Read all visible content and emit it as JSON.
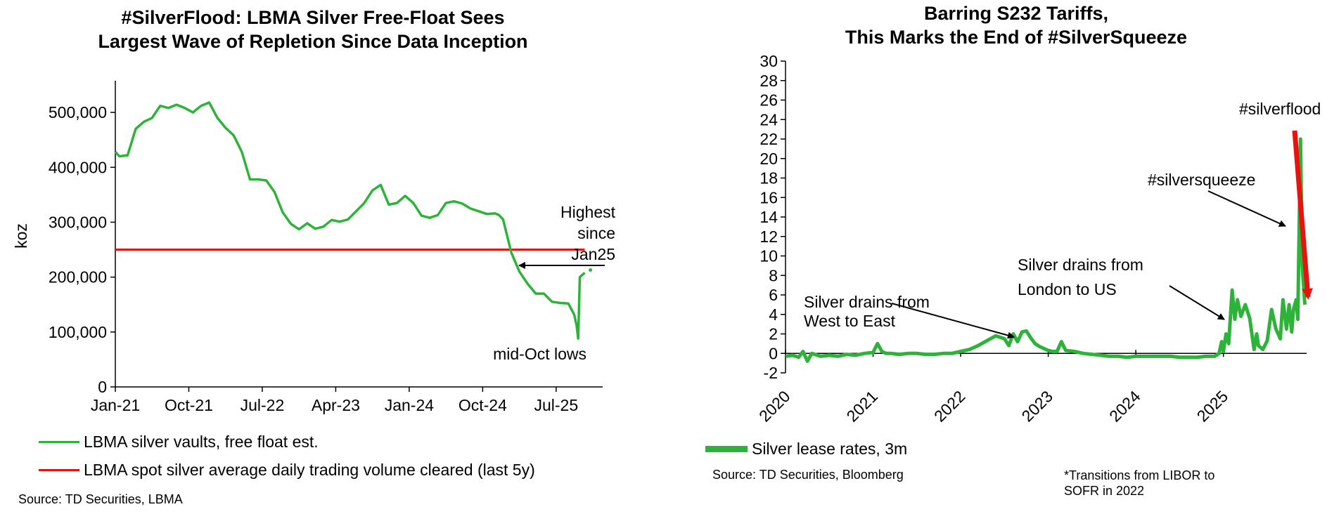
{
  "colors": {
    "green": "#2DB33A",
    "red": "#E8130E",
    "black": "#000000"
  },
  "left": {
    "source": "Source: TD Securities, LBMA",
    "legend": [
      {
        "label": "LBMA silver vaults, free float est.",
        "color": "#2DB33A"
      },
      {
        "label": "LBMA spot silver average daily trading volume cleared (last 5y)",
        "color": "#E8130E"
      }
    ],
    "annotations": {
      "highest_lines": [
        "Highest",
        "since",
        "Jan25"
      ],
      "lows": "mid-Oct lows"
    }
  },
  "right": {
    "source": "Source: TD Securities, Bloomberg",
    "note_lines": [
      "*Transitions from LIBOR to",
      "SOFR in 2022"
    ],
    "legend": [
      {
        "label": "Silver lease rates, 3m",
        "color": "#2DB33A"
      }
    ],
    "annotations": {
      "west_east": [
        "Silver drains from",
        "West to East"
      ],
      "london_us": [
        "Silver drains from",
        "London to US"
      ],
      "squeeze": "#silversqueeze",
      "flood": "#silverflood"
    }
  },
  "chart_data": [
    {
      "type": "line",
      "title": "#SilverFlood: LBMA Silver Free-Float Sees Largest Wave of Repletion Since Data Inception",
      "title_lines": [
        "#SilverFlood: LBMA Silver Free-Float Sees",
        "Largest Wave of Repletion Since Data Inception"
      ],
      "xlabel": "",
      "ylabel": "koz",
      "ylim": [
        0,
        550000
      ],
      "yticks": [
        0,
        100000,
        200000,
        300000,
        400000,
        500000
      ],
      "ytick_labels": [
        "0",
        "100,000",
        "200,000",
        "300,000",
        "400,000",
        "500,000"
      ],
      "xlim": [
        0,
        59.7
      ],
      "x_unit": "months since Jan-21",
      "xtick_labels": [
        "Jan-21",
        "Oct-21",
        "Jul-22",
        "Apr-23",
        "Jan-24",
        "Oct-24",
        "Jul-25"
      ],
      "xtick_values": [
        0,
        9,
        18,
        27,
        36,
        45,
        54
      ],
      "series": [
        {
          "name": "LBMA silver vaults, free float est.",
          "x": [
            0,
            0.5,
            1.5,
            2.5,
            3.5,
            4.5,
            5.5,
            6.5,
            7.5,
            8.5,
            9.5,
            10.5,
            11.5,
            12.5,
            13.5,
            14.5,
            15.5,
            16.5,
            17.5,
            18.5,
            19.5,
            20.5,
            21.5,
            22.5,
            23.5,
            24.5,
            25.5,
            26.5,
            27.5,
            28.5,
            29.5,
            30.5,
            31.5,
            32.5,
            33.5,
            34.5,
            35.5,
            36.5,
            37.5,
            38.5,
            39.5,
            40.5,
            41.5,
            42.5,
            43.5,
            44.5,
            45.5,
            46.5,
            47,
            47.5,
            48.5,
            49.5,
            50.5,
            51.5,
            52.5,
            53.5,
            54.5,
            55.5,
            56.2,
            56.5,
            56.7,
            56.9,
            57.5,
            58.2
          ],
          "values": [
            428000,
            420000,
            422000,
            470000,
            483000,
            490000,
            512000,
            508000,
            514000,
            508000,
            500000,
            512000,
            518000,
            490000,
            472000,
            458000,
            428000,
            378000,
            378000,
            376000,
            355000,
            318000,
            297000,
            287000,
            298000,
            288000,
            292000,
            304000,
            301000,
            305000,
            320000,
            335000,
            358000,
            368000,
            332000,
            335000,
            348000,
            335000,
            312000,
            308000,
            313000,
            335000,
            338000,
            334000,
            325000,
            320000,
            315000,
            316000,
            313000,
            305000,
            245000,
            210000,
            188000,
            170000,
            170000,
            155000,
            153000,
            152000,
            132000,
            112000,
            88000,
            200000,
            208000,
            213000
          ]
        },
        {
          "name": "LBMA spot silver average daily trading volume cleared (last 5y)",
          "x": [
            0,
            57.5
          ],
          "values": [
            250000,
            250000
          ]
        }
      ]
    },
    {
      "type": "line",
      "title": "Barring S232 Tariffs, This Marks the End of #SilverSqueeze",
      "title_lines": [
        "Barring S232 Tariffs,",
        "This Marks the End of #SilverSqueeze"
      ],
      "xlabel": "",
      "ylabel": "",
      "ylim": [
        -2,
        30
      ],
      "yticks": [
        -2,
        0,
        2,
        4,
        6,
        8,
        10,
        12,
        14,
        16,
        18,
        20,
        22,
        24,
        26,
        28,
        30
      ],
      "xlim": [
        2020,
        2025.95
      ],
      "xtick_labels": [
        "2020",
        "2021",
        "2022",
        "2023",
        "2024",
        "2025"
      ],
      "xtick_values": [
        2020,
        2021,
        2022,
        2023,
        2024,
        2025
      ],
      "series": [
        {
          "name": "Silver lease rates, 3m",
          "x": [
            2020,
            2020.08,
            2020.15,
            2020.2,
            2020.25,
            2020.3,
            2020.4,
            2020.5,
            2020.6,
            2020.7,
            2020.8,
            2020.9,
            2021,
            2021.05,
            2021.1,
            2021.15,
            2021.2,
            2021.3,
            2021.4,
            2021.5,
            2021.6,
            2021.7,
            2021.8,
            2021.9,
            2022,
            2022.1,
            2022.2,
            2022.3,
            2022.4,
            2022.5,
            2022.55,
            2022.6,
            2022.65,
            2022.7,
            2022.75,
            2022.8,
            2022.85,
            2022.9,
            2022.95,
            2023,
            2023.05,
            2023.1,
            2023.15,
            2023.2,
            2023.3,
            2023.4,
            2023.5,
            2023.6,
            2023.7,
            2023.8,
            2023.9,
            2024,
            2024.1,
            2024.2,
            2024.3,
            2024.4,
            2024.5,
            2024.6,
            2024.7,
            2024.8,
            2024.9,
            2024.95,
            2024.98,
            2025,
            2025.03,
            2025.06,
            2025.1,
            2025.13,
            2025.16,
            2025.2,
            2025.25,
            2025.3,
            2025.35,
            2025.38,
            2025.4,
            2025.45,
            2025.5,
            2025.55,
            2025.6,
            2025.65,
            2025.68,
            2025.72,
            2025.75,
            2025.78,
            2025.8,
            2025.83,
            2025.85,
            2025.88,
            2025.9,
            2025.93
          ],
          "values": [
            -0.3,
            -0.2,
            -0.4,
            0.2,
            -0.8,
            0,
            -0.3,
            -0.2,
            -0.3,
            -0.1,
            -0.2,
            0,
            0.1,
            1,
            0.2,
            0,
            0,
            -0.1,
            0,
            0,
            -0.1,
            -0.1,
            0,
            0,
            0.2,
            0.4,
            0.8,
            1.3,
            1.8,
            1.5,
            0.8,
            2,
            1.2,
            2.2,
            2.3,
            1.6,
            1,
            0.7,
            0.5,
            0.3,
            0.2,
            0.2,
            1.2,
            0.3,
            0.2,
            0,
            -0.1,
            -0.2,
            -0.3,
            -0.3,
            -0.4,
            -0.3,
            -0.3,
            -0.3,
            -0.3,
            -0.3,
            -0.4,
            -0.4,
            -0.4,
            -0.3,
            -0.3,
            0,
            1.2,
            0.2,
            2,
            1,
            6.5,
            3.5,
            5.5,
            3.8,
            5,
            3.6,
            0.4,
            2,
            0.8,
            0.4,
            1.3,
            4.5,
            2.5,
            1.5,
            5.5,
            2.5,
            5,
            2.2,
            4.5,
            5.5,
            3.5,
            22,
            9,
            5
          ]
        }
      ]
    }
  ]
}
